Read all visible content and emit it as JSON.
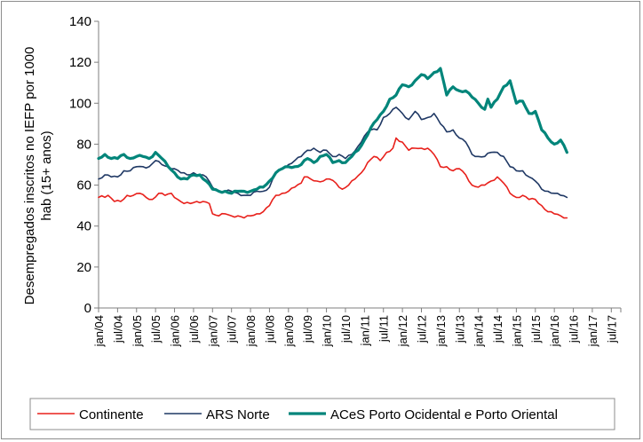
{
  "chart_data": {
    "type": "line",
    "title": "",
    "ylabel_line1": "Desempregados inscritos no IEFP por 1000",
    "ylabel_line2": "hab (15+ anos)",
    "xlabel": "",
    "ylim": [
      0,
      140
    ],
    "yticks": [
      0,
      20,
      40,
      60,
      80,
      100,
      120,
      140
    ],
    "grid": false,
    "legend_position": "bottom",
    "start_month": "jan/04",
    "x_tick_labels": [
      "jan/04",
      "jul/04",
      "jan/05",
      "jul/05",
      "jan/06",
      "jul/06",
      "jan/07",
      "jul/07",
      "jan/08",
      "jul/08",
      "jan/09",
      "jul/09",
      "jan/10",
      "jul/10",
      "jan/11",
      "jul/11",
      "jan/12",
      "jul/12",
      "jan/13",
      "jul/13",
      "jan/14",
      "jul/14",
      "jan/15",
      "jul/15",
      "jan/16",
      "jul/16",
      "jan/17",
      "jul/17"
    ],
    "series": [
      {
        "name": "Continente",
        "color": "#e8201b",
        "width": 1.6,
        "knots": [
          [
            0,
            54
          ],
          [
            3,
            55
          ],
          [
            5,
            52
          ],
          [
            7,
            52
          ],
          [
            9,
            55
          ],
          [
            11,
            55
          ],
          [
            13,
            56
          ],
          [
            15,
            54
          ],
          [
            17,
            53
          ],
          [
            19,
            56
          ],
          [
            21,
            55
          ],
          [
            23,
            56
          ],
          [
            25,
            53
          ],
          [
            27,
            51
          ],
          [
            29,
            51
          ],
          [
            31,
            52
          ],
          [
            33,
            52
          ],
          [
            35,
            51
          ],
          [
            36,
            46
          ],
          [
            38,
            45
          ],
          [
            40,
            46
          ],
          [
            42,
            45
          ],
          [
            44,
            45
          ],
          [
            46,
            44
          ],
          [
            48,
            45
          ],
          [
            50,
            46
          ],
          [
            52,
            47
          ],
          [
            54,
            50
          ],
          [
            56,
            55
          ],
          [
            58,
            56
          ],
          [
            60,
            57
          ],
          [
            62,
            59
          ],
          [
            64,
            61
          ],
          [
            65,
            64
          ],
          [
            67,
            63
          ],
          [
            69,
            62
          ],
          [
            71,
            62
          ],
          [
            73,
            63
          ],
          [
            75,
            61
          ],
          [
            77,
            58
          ],
          [
            79,
            60
          ],
          [
            81,
            63
          ],
          [
            83,
            66
          ],
          [
            85,
            71
          ],
          [
            87,
            74
          ],
          [
            89,
            72
          ],
          [
            91,
            76
          ],
          [
            93,
            78
          ],
          [
            94,
            83
          ],
          [
            96,
            81
          ],
          [
            98,
            77
          ],
          [
            100,
            78
          ],
          [
            102,
            78
          ],
          [
            104,
            78
          ],
          [
            106,
            75
          ],
          [
            108,
            69
          ],
          [
            110,
            69
          ],
          [
            112,
            67
          ],
          [
            114,
            68
          ],
          [
            116,
            65
          ],
          [
            118,
            60
          ],
          [
            120,
            59
          ],
          [
            122,
            60
          ],
          [
            124,
            62
          ],
          [
            126,
            64
          ],
          [
            128,
            61
          ],
          [
            130,
            56
          ],
          [
            132,
            54
          ],
          [
            134,
            55
          ],
          [
            136,
            53
          ],
          [
            138,
            53
          ],
          [
            140,
            50
          ],
          [
            142,
            47
          ],
          [
            144,
            46
          ],
          [
            146,
            45
          ],
          [
            148,
            44
          ]
        ]
      },
      {
        "name": "ARS Norte",
        "color": "#1f3864",
        "width": 1.6,
        "knots": [
          [
            0,
            63
          ],
          [
            2,
            65
          ],
          [
            4,
            64
          ],
          [
            6,
            64
          ],
          [
            8,
            67
          ],
          [
            10,
            67
          ],
          [
            12,
            69
          ],
          [
            14,
            69
          ],
          [
            16,
            69
          ],
          [
            18,
            72
          ],
          [
            20,
            70
          ],
          [
            22,
            69
          ],
          [
            24,
            68
          ],
          [
            26,
            66
          ],
          [
            28,
            65
          ],
          [
            30,
            66
          ],
          [
            32,
            65
          ],
          [
            34,
            64
          ],
          [
            36,
            59
          ],
          [
            38,
            57
          ],
          [
            40,
            57
          ],
          [
            42,
            57
          ],
          [
            44,
            56
          ],
          [
            46,
            55
          ],
          [
            48,
            55
          ],
          [
            50,
            57
          ],
          [
            52,
            57
          ],
          [
            54,
            59
          ],
          [
            56,
            66
          ],
          [
            58,
            68
          ],
          [
            60,
            70
          ],
          [
            62,
            72
          ],
          [
            64,
            74
          ],
          [
            66,
            77
          ],
          [
            68,
            78
          ],
          [
            70,
            76
          ],
          [
            72,
            77
          ],
          [
            74,
            74
          ],
          [
            76,
            75
          ],
          [
            78,
            73
          ],
          [
            80,
            75
          ],
          [
            82,
            79
          ],
          [
            84,
            84
          ],
          [
            86,
            87
          ],
          [
            88,
            87
          ],
          [
            90,
            93
          ],
          [
            92,
            95
          ],
          [
            94,
            98
          ],
          [
            96,
            95
          ],
          [
            98,
            92
          ],
          [
            100,
            96
          ],
          [
            102,
            92
          ],
          [
            104,
            93
          ],
          [
            106,
            95
          ],
          [
            108,
            90
          ],
          [
            110,
            86
          ],
          [
            112,
            87
          ],
          [
            114,
            83
          ],
          [
            116,
            81
          ],
          [
            118,
            75
          ],
          [
            120,
            74
          ],
          [
            122,
            74
          ],
          [
            124,
            76
          ],
          [
            126,
            76
          ],
          [
            128,
            74
          ],
          [
            130,
            69
          ],
          [
            132,
            67
          ],
          [
            134,
            67
          ],
          [
            136,
            64
          ],
          [
            138,
            62
          ],
          [
            140,
            58
          ],
          [
            142,
            57
          ],
          [
            144,
            56
          ],
          [
            146,
            55
          ],
          [
            148,
            54
          ]
        ]
      },
      {
        "name": "ACeS Porto Ocidental e Porto Oriental",
        "color": "#00857a",
        "width": 3.2,
        "knots": [
          [
            0,
            73
          ],
          [
            2,
            75
          ],
          [
            4,
            73
          ],
          [
            6,
            73
          ],
          [
            8,
            75
          ],
          [
            10,
            73
          ],
          [
            12,
            74
          ],
          [
            14,
            74
          ],
          [
            16,
            73
          ],
          [
            18,
            76
          ],
          [
            20,
            73
          ],
          [
            22,
            69
          ],
          [
            24,
            66
          ],
          [
            26,
            63
          ],
          [
            28,
            63
          ],
          [
            30,
            65
          ],
          [
            32,
            65
          ],
          [
            34,
            62
          ],
          [
            36,
            58
          ],
          [
            38,
            57
          ],
          [
            40,
            57
          ],
          [
            42,
            56
          ],
          [
            44,
            57
          ],
          [
            46,
            57
          ],
          [
            48,
            57
          ],
          [
            50,
            58
          ],
          [
            52,
            59
          ],
          [
            54,
            62
          ],
          [
            56,
            66
          ],
          [
            58,
            68
          ],
          [
            60,
            69
          ],
          [
            62,
            69
          ],
          [
            64,
            70
          ],
          [
            66,
            73
          ],
          [
            68,
            71
          ],
          [
            70,
            74
          ],
          [
            72,
            75
          ],
          [
            74,
            71
          ],
          [
            76,
            72
          ],
          [
            78,
            71
          ],
          [
            80,
            74
          ],
          [
            82,
            77
          ],
          [
            84,
            82
          ],
          [
            86,
            88
          ],
          [
            88,
            92
          ],
          [
            90,
            96
          ],
          [
            92,
            102
          ],
          [
            94,
            104
          ],
          [
            96,
            109
          ],
          [
            98,
            108
          ],
          [
            100,
            111
          ],
          [
            102,
            114
          ],
          [
            104,
            112
          ],
          [
            106,
            115
          ],
          [
            108,
            117
          ],
          [
            110,
            104
          ],
          [
            112,
            108
          ],
          [
            114,
            106
          ],
          [
            116,
            106
          ],
          [
            118,
            103
          ],
          [
            120,
            100
          ],
          [
            122,
            97
          ],
          [
            123,
            102
          ],
          [
            124,
            98
          ],
          [
            126,
            102
          ],
          [
            128,
            108
          ],
          [
            130,
            111
          ],
          [
            132,
            100
          ],
          [
            134,
            101
          ],
          [
            136,
            95
          ],
          [
            138,
            96
          ],
          [
            140,
            87
          ],
          [
            142,
            83
          ],
          [
            144,
            80
          ],
          [
            146,
            82
          ],
          [
            148,
            76
          ]
        ]
      }
    ]
  }
}
